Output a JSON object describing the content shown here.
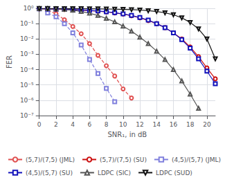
{
  "chart_data": {
    "type": "line",
    "xlabel": "SNR₁, in dB",
    "ylabel": "FER",
    "log": "y",
    "grid": true,
    "legend": "lower left",
    "xlim": [
      0,
      21
    ],
    "xticks": [
      0,
      2,
      4,
      6,
      8,
      10,
      12,
      14,
      16,
      18,
      20
    ],
    "ylim": [
      1e-07,
      1
    ],
    "yticks": [
      {
        "value": 1e-07,
        "label": "10⁻⁷"
      },
      {
        "value": 1e-06,
        "label": "10⁻⁶"
      },
      {
        "value": 1e-05,
        "label": "10⁻⁵"
      },
      {
        "value": 0.0001,
        "label": "10⁻⁴"
      },
      {
        "value": 0.001,
        "label": "10⁻³"
      },
      {
        "value": 0.01,
        "label": "10⁻²"
      },
      {
        "value": 0.1,
        "label": "10⁻¹"
      },
      {
        "value": 1,
        "label": "10⁰"
      }
    ],
    "series": [
      {
        "name": "(5,7)/(7,5) (JML)",
        "color": "#e05050",
        "line_style": "dashed",
        "marker": "circle",
        "x": [
          1,
          2,
          3,
          4,
          5,
          6,
          7,
          8,
          9,
          10,
          11
        ],
        "values": [
          0.72,
          0.45,
          0.18,
          0.065,
          0.022,
          0.005,
          0.00085,
          0.00018,
          3.8e-05,
          5.5e-06,
          1.4e-06
        ]
      },
      {
        "name": "(5,7)/(7,5) (SU)",
        "color": "#cc1111",
        "line_style": "solid",
        "marker": "circle",
        "x": [
          0,
          1,
          2,
          3,
          4,
          5,
          6,
          7,
          8,
          9,
          10,
          11,
          12,
          13,
          14,
          15,
          16,
          17,
          18,
          19,
          20,
          21
        ],
        "values": [
          0.93,
          0.9,
          0.87,
          0.84,
          0.8,
          0.76,
          0.71,
          0.65,
          0.58,
          0.5,
          0.42,
          0.33,
          0.24,
          0.16,
          0.1,
          0.055,
          0.025,
          0.01,
          0.003,
          0.0007,
          0.00013,
          2.5e-05
        ]
      },
      {
        "name": "(4,5)/(5,7) (JML)",
        "color": "#8080dd",
        "line_style": "dashed",
        "marker": "square",
        "x": [
          1,
          2,
          3,
          4,
          5,
          6,
          7,
          8,
          9
        ],
        "values": [
          0.5,
          0.28,
          0.1,
          0.025,
          0.004,
          0.00045,
          5.5e-05,
          6e-06,
          8e-07
        ]
      },
      {
        "name": "(4,5)/(5,7) (SU)",
        "color": "#1111bb",
        "line_style": "solid",
        "marker": "square",
        "x": [
          0,
          1,
          2,
          3,
          4,
          5,
          6,
          7,
          8,
          9,
          10,
          11,
          12,
          13,
          14,
          15,
          16,
          17,
          18,
          19,
          20,
          21
        ],
        "values": [
          0.93,
          0.91,
          0.88,
          0.85,
          0.82,
          0.78,
          0.73,
          0.67,
          0.6,
          0.52,
          0.43,
          0.34,
          0.25,
          0.17,
          0.1,
          0.055,
          0.025,
          0.009,
          0.0025,
          0.0005,
          8e-05,
          1.2e-05
        ]
      },
      {
        "name": "LDPC (SIC)",
        "color": "#555555",
        "line_style": "solid",
        "marker": "triangle_up",
        "x": [
          0,
          1,
          2,
          3,
          4,
          5,
          6,
          7,
          8,
          9,
          10,
          11,
          12,
          13,
          14,
          15,
          16,
          17,
          18,
          19
        ],
        "values": [
          0.96,
          0.94,
          0.91,
          0.85,
          0.75,
          0.62,
          0.48,
          0.34,
          0.22,
          0.13,
          0.068,
          0.032,
          0.013,
          0.005,
          0.0016,
          0.00045,
          0.0001,
          1.8e-05,
          2.5e-06,
          3e-07
        ]
      },
      {
        "name": "LDPC (SUD)",
        "color": "#111111",
        "line_style": "solid",
        "marker": "triangle_down",
        "x": [
          0,
          1,
          2,
          3,
          4,
          5,
          6,
          7,
          8,
          9,
          10,
          11,
          12,
          13,
          14,
          15,
          16,
          17,
          18,
          19,
          20,
          21
        ],
        "values": [
          0.97,
          0.965,
          0.96,
          0.955,
          0.95,
          0.94,
          0.93,
          0.92,
          0.9,
          0.88,
          0.85,
          0.82,
          0.77,
          0.7,
          0.62,
          0.51,
          0.38,
          0.24,
          0.12,
          0.045,
          0.01,
          0.0005
        ]
      }
    ]
  }
}
